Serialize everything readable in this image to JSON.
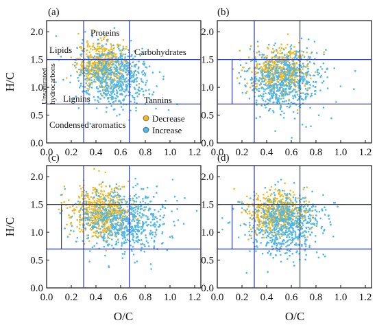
{
  "colors": {
    "decrease": "#F2B822",
    "increase": "#4CB7EA",
    "boundary": "#2B3BB8",
    "axis": "#111111"
  },
  "chart_data": [
    {
      "type": "scatter",
      "panel": "(a)",
      "xlim": [
        0,
        1.25
      ],
      "ylim": [
        0,
        2.2
      ],
      "xticks": [
        "0.0",
        "0.2",
        "0.4",
        "0.6",
        "0.8",
        "1.0",
        "1.2"
      ],
      "yticks": [
        "0.0",
        "0.5",
        "1.0",
        "1.5",
        "2.0"
      ],
      "xlabel": "",
      "ylabel": "H/C",
      "legend": {
        "placement": "bottom-right",
        "entries": [
          "Decrease",
          "Increase"
        ]
      },
      "series": [
        {
          "name": "Decrease",
          "center": [
            0.45,
            1.42
          ],
          "spread": [
            0.1,
            0.2
          ],
          "count": 520
        },
        {
          "name": "Increase",
          "center": [
            0.55,
            1.18
          ],
          "spread": [
            0.15,
            0.28
          ],
          "count": 620
        }
      ],
      "boundaries": {
        "vertical": [
          0.3,
          0.67
        ],
        "horizontal": [
          1.5,
          0.7
        ],
        "lipid_vertical": null
      },
      "regions": [
        "Proteins",
        "Lipids",
        "Carbohydrates",
        "Unsaturated hydrocarbons",
        "Lignins",
        "Tannins",
        "Condensed aromatics"
      ]
    },
    {
      "type": "scatter",
      "panel": "(b)",
      "xlim": [
        0,
        1.25
      ],
      "ylim": [
        0,
        2.2
      ],
      "xticks": [
        "0.0",
        "0.2",
        "0.4",
        "0.6",
        "0.8",
        "1.0",
        "1.2"
      ],
      "yticks": [
        "0.0",
        "0.5",
        "1.0",
        "1.5",
        "2.0"
      ],
      "xlabel": "",
      "ylabel": "",
      "series": [
        {
          "name": "Decrease",
          "center": [
            0.5,
            1.3
          ],
          "spread": [
            0.12,
            0.2
          ],
          "count": 480
        },
        {
          "name": "Increase",
          "center": [
            0.55,
            1.12
          ],
          "spread": [
            0.15,
            0.28
          ],
          "count": 620
        }
      ],
      "boundaries": {
        "vertical": [
          0.3,
          0.67
        ],
        "horizontal": [
          1.5,
          0.7
        ],
        "lipid_vertical": 0.12
      }
    },
    {
      "type": "scatter",
      "panel": "(c)",
      "xlim": [
        0,
        1.25
      ],
      "ylim": [
        0,
        2.2
      ],
      "xticks": [
        "0.0",
        "0.2",
        "0.4",
        "0.6",
        "0.8",
        "1.0",
        "1.2"
      ],
      "yticks": [
        "0.0",
        "0.5",
        "1.0",
        "1.5",
        "2.0"
      ],
      "xlabel": "O/C",
      "ylabel": "H/C",
      "series": [
        {
          "name": "Decrease",
          "center": [
            0.45,
            1.38
          ],
          "spread": [
            0.12,
            0.22
          ],
          "count": 560
        },
        {
          "name": "Increase",
          "center": [
            0.62,
            1.18
          ],
          "spread": [
            0.18,
            0.28
          ],
          "count": 650
        }
      ],
      "boundaries": {
        "vertical": [
          0.3,
          0.67
        ],
        "horizontal": [
          1.5,
          0.7
        ],
        "lipid_vertical": 0.12
      }
    },
    {
      "type": "scatter",
      "panel": "(d)",
      "xlim": [
        0,
        1.25
      ],
      "ylim": [
        0,
        2.2
      ],
      "xticks": [
        "0.0",
        "0.2",
        "0.4",
        "0.6",
        "0.8",
        "1.0",
        "1.2"
      ],
      "yticks": [
        "0.0",
        "0.5",
        "1.0",
        "1.5",
        "2.0"
      ],
      "xlabel": "O/C",
      "ylabel": "",
      "series": [
        {
          "name": "Decrease",
          "center": [
            0.48,
            1.35
          ],
          "spread": [
            0.12,
            0.2
          ],
          "count": 500
        },
        {
          "name": "Increase",
          "center": [
            0.55,
            1.15
          ],
          "spread": [
            0.16,
            0.28
          ],
          "count": 640
        }
      ],
      "boundaries": {
        "vertical": [
          0.3,
          0.67
        ],
        "horizontal": [
          1.5,
          0.7
        ],
        "lipid_vertical": 0.12
      }
    }
  ],
  "regions_a": {
    "proteins": "Proteins",
    "lipids": "Lipids",
    "carbohydrates": "Carbohydrates",
    "unsaturated_1": "Unsaturated",
    "unsaturated_2": "hydrocarbons",
    "lignins": "Lignins",
    "tannins": "Tannins",
    "condensed": "Condensed aromatics"
  },
  "legend": {
    "decrease": "Decrease",
    "increase": "Increase"
  }
}
